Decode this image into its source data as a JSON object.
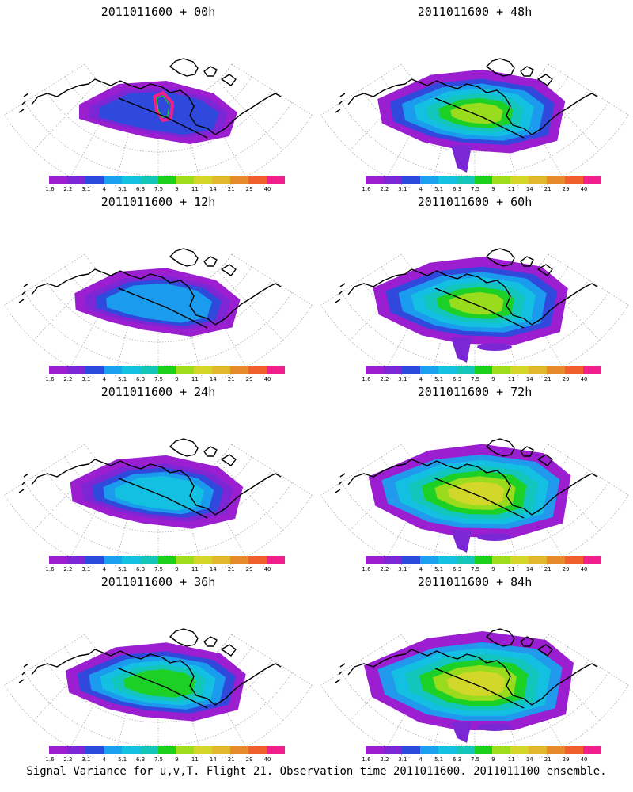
{
  "panels": [
    {
      "title": "2011011600 + 00h",
      "col": 0,
      "row": 0,
      "level": 0
    },
    {
      "title": "2011011600 + 12h",
      "col": 0,
      "row": 1,
      "level": 1
    },
    {
      "title": "2011011600 + 24h",
      "col": 0,
      "row": 2,
      "level": 2
    },
    {
      "title": "2011011600 + 36h",
      "col": 0,
      "row": 3,
      "level": 3
    },
    {
      "title": "2011011600 + 48h",
      "col": 1,
      "row": 0,
      "level": 4
    },
    {
      "title": "2011011600 + 60h",
      "col": 1,
      "row": 1,
      "level": 5
    },
    {
      "title": "2011011600 + 72h",
      "col": 1,
      "row": 2,
      "level": 6
    },
    {
      "title": "2011011600 + 84h",
      "col": 1,
      "row": 3,
      "level": 7
    }
  ],
  "colorbar": {
    "labels": [
      "1.6",
      "2.2",
      "3.1",
      "4",
      "5.1",
      "6.3",
      "7.5",
      "9",
      "11",
      "14",
      "21",
      "29",
      "40"
    ],
    "colors": [
      "#9b1ed1",
      "#7b27d6",
      "#2a4bdb",
      "#1aa0ee",
      "#13c2e0",
      "#13c6b8",
      "#1cd11c",
      "#9fdc1c",
      "#d6d62a",
      "#e1b72c",
      "#e68a2c",
      "#ee5f2c",
      "#f01f8a"
    ]
  },
  "footer": "Signal Variance for u,v,T. Flight 21. Observation time 2011011600. 2011011100 ensemble."
}
